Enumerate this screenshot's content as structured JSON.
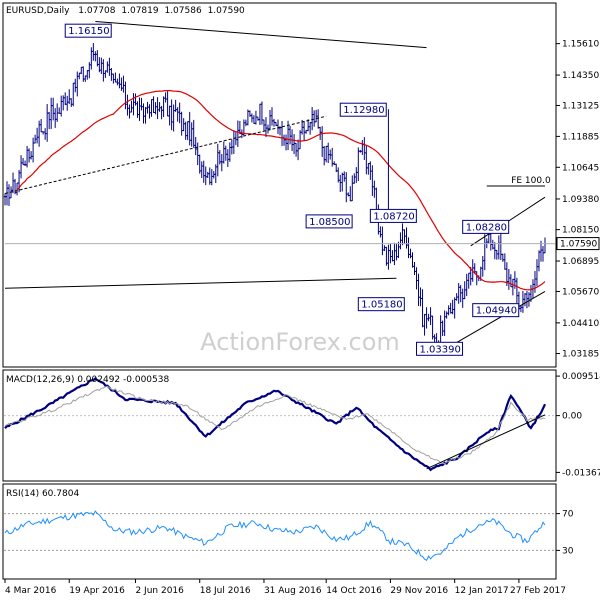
{
  "chart_data": [
    {
      "type": "ohlc",
      "title": "EURUSD,Daily",
      "ohlc_readout": [
        "1.07708",
        "1.07819",
        "1.07586",
        "1.07590"
      ],
      "ylim": [
        1.0268,
        1.172
      ],
      "y_ticks": [
        1.1561,
        1.1435,
        1.1313,
        1.1189,
        1.1065,
        1.0938,
        1.0815,
        1.0689,
        1.0567,
        1.0441,
        1.0318
      ],
      "y_tick_labels": [
        "1.15610",
        "1.14350",
        "1.13125",
        "1.11885",
        "1.10645",
        "1.09380",
        "1.08150",
        "1.06895",
        "1.05670",
        "1.04410",
        "1.03185"
      ],
      "x_tick_labels": [
        "4 Mar 2016",
        "19 Apr 2016",
        "2 Jun 2016",
        "18 Jul 2016",
        "31 Aug 2016",
        "14 Oct 2016",
        "29 Nov 2016",
        "12 Jan 2017",
        "27 Feb 2017"
      ],
      "bar_count": 270,
      "closes_anchor_path": [
        [
          0,
          1.092
        ],
        [
          8,
          1.106
        ],
        [
          18,
          1.123
        ],
        [
          30,
          1.133
        ],
        [
          45,
          1.152
        ],
        [
          52,
          1.143
        ],
        [
          65,
          1.129
        ],
        [
          80,
          1.131
        ],
        [
          90,
          1.123
        ],
        [
          100,
          1.103
        ],
        [
          112,
          1.115
        ],
        [
          125,
          1.129
        ],
        [
          135,
          1.123
        ],
        [
          145,
          1.114
        ],
        [
          153,
          1.126
        ],
        [
          162,
          1.109
        ],
        [
          172,
          1.095
        ],
        [
          178,
          1.118
        ],
        [
          190,
          1.068
        ],
        [
          200,
          1.08
        ],
        [
          208,
          1.048
        ],
        [
          216,
          1.038
        ],
        [
          224,
          1.054
        ],
        [
          234,
          1.063
        ],
        [
          242,
          1.079
        ],
        [
          248,
          1.068
        ],
        [
          256,
          1.053
        ],
        [
          262,
          1.056
        ],
        [
          266,
          1.071
        ],
        [
          269,
          1.0759
        ]
      ],
      "moving_average_color": "#e00000",
      "price_color": "#000080",
      "annotations": [
        "1.16150",
        "1.12980",
        "1.08500",
        "1.08720",
        "1.08280",
        "1.05180",
        "1.04940",
        "1.03390",
        "FE 100.0",
        "1.07590"
      ],
      "watermark": "ActionForex.com"
    },
    {
      "type": "line",
      "title": "MACD(12,26,9) 0.002492 -0.000538",
      "ylim": [
        -0.0155,
        0.0105
      ],
      "y_ticks": [
        0.009514,
        0.0,
        -0.013671
      ],
      "y_tick_labels": [
        "0.009514",
        "0.00",
        "-0.013671"
      ],
      "series": [
        {
          "name": "MACD",
          "color": "#000080",
          "anchors": [
            [
              0,
              -0.003
            ],
            [
              20,
              0.002
            ],
            [
              45,
              0.009
            ],
            [
              60,
              0.004
            ],
            [
              85,
              0.003
            ],
            [
              100,
              -0.005
            ],
            [
              120,
              0.003
            ],
            [
              135,
              0.006
            ],
            [
              150,
              0.002
            ],
            [
              165,
              -0.002
            ],
            [
              175,
              0.002
            ],
            [
              185,
              -0.003
            ],
            [
              200,
              -0.009
            ],
            [
              212,
              -0.013
            ],
            [
              226,
              -0.01
            ],
            [
              240,
              -0.004
            ],
            [
              246,
              -0.003
            ],
            [
              252,
              0.005
            ],
            [
              262,
              -0.003
            ],
            [
              269,
              0.0025
            ]
          ]
        },
        {
          "name": "Signal",
          "color": "#a0a0a0",
          "anchors": [
            [
              0,
              -0.0025
            ],
            [
              25,
              0.0015
            ],
            [
              50,
              0.007
            ],
            [
              68,
              0.004
            ],
            [
              90,
              0.0025
            ],
            [
              108,
              -0.0035
            ],
            [
              125,
              0.002
            ],
            [
              140,
              0.005
            ],
            [
              155,
              0.002
            ],
            [
              170,
              -0.001
            ],
            [
              180,
              0.0005
            ],
            [
              192,
              -0.0035
            ],
            [
              205,
              -0.0085
            ],
            [
              218,
              -0.0115
            ],
            [
              232,
              -0.009
            ],
            [
              244,
              -0.0045
            ],
            [
              252,
              0.003
            ],
            [
              260,
              -0.001
            ],
            [
              269,
              -0.0005
            ]
          ]
        }
      ]
    },
    {
      "type": "line",
      "title": "RSI(14) 60.7804",
      "ylim": [
        0,
        100
      ],
      "y_ticks": [
        70,
        30
      ],
      "y_tick_labels": [
        "70",
        "30"
      ],
      "levels": [
        70,
        30
      ],
      "series": [
        {
          "name": "RSI",
          "color": "#1e90ff",
          "anchors": [
            [
              0,
              48
            ],
            [
              10,
              58
            ],
            [
              20,
              62
            ],
            [
              35,
              68
            ],
            [
              45,
              70
            ],
            [
              55,
              52
            ],
            [
              65,
              50
            ],
            [
              80,
              55
            ],
            [
              90,
              45
            ],
            [
              100,
              38
            ],
            [
              112,
              56
            ],
            [
              125,
              60
            ],
            [
              135,
              52
            ],
            [
              145,
              50
            ],
            [
              155,
              56
            ],
            [
              165,
              42
            ],
            [
              172,
              44
            ],
            [
              182,
              60
            ],
            [
              192,
              40
            ],
            [
              200,
              36
            ],
            [
              210,
              22
            ],
            [
              218,
              28
            ],
            [
              226,
              45
            ],
            [
              236,
              58
            ],
            [
              244,
              62
            ],
            [
              252,
              48
            ],
            [
              260,
              40
            ],
            [
              265,
              52
            ],
            [
              269,
              61
            ]
          ]
        }
      ]
    }
  ]
}
